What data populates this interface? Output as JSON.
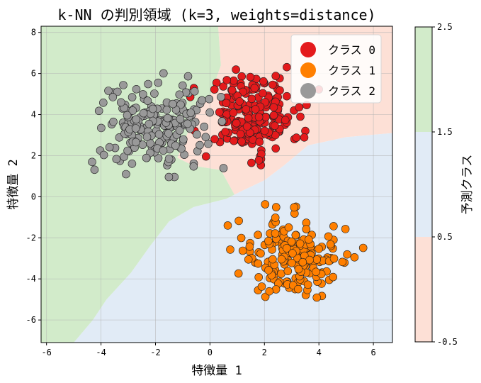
{
  "chart_data": {
    "type": "scatter",
    "title": "k-NN の判別領域 (k=3, weights=distance)",
    "xlabel": "特徴量 1",
    "ylabel": "特徴量 2",
    "xlim": [
      -6.2,
      6.7
    ],
    "ylim": [
      -7.1,
      8.3
    ],
    "xticks": [
      -6,
      -4,
      -2,
      0,
      2,
      4,
      6
    ],
    "yticks": [
      -6,
      -4,
      -2,
      0,
      2,
      4,
      6,
      8
    ],
    "grid": true,
    "legend_position": "top-right",
    "colorbar": {
      "label": "予測クラス",
      "ticks": [
        -0.5,
        0.5,
        1.5,
        2.5
      ],
      "tick_labels": [
        "-0.5",
        "0.5",
        "1.5",
        "2.5"
      ],
      "colors": [
        "#fde0d6",
        "#e1ebf6",
        "#d2ebca"
      ]
    },
    "region_colors": {
      "0": "#fde0d6",
      "1": "#e1ebf6",
      "2": "#d2ebca"
    },
    "series": [
      {
        "name": "クラス 0",
        "color": "#e41a1c",
        "center": [
          1.5,
          4.0
        ],
        "spread": [
          0.85,
          0.95
        ],
        "count": 200
      },
      {
        "name": "クラス 1",
        "color": "#ff7f00",
        "center": [
          3.0,
          -3.0
        ],
        "spread": [
          0.9,
          0.95
        ],
        "count": 200
      },
      {
        "name": "クラス 2",
        "color": "#999999",
        "center": [
          -2.0,
          3.5
        ],
        "spread": [
          1.05,
          1.05
        ],
        "count": 200
      }
    ]
  }
}
